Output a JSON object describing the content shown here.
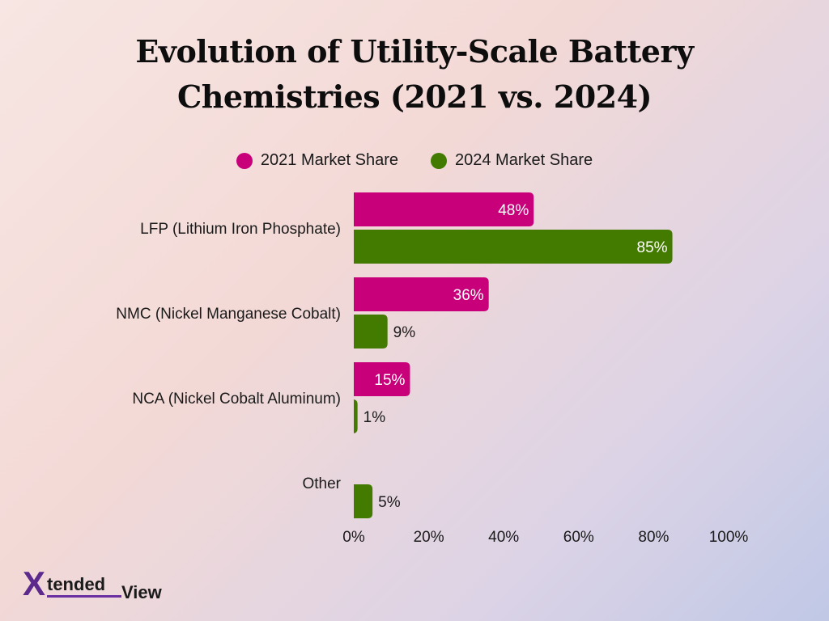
{
  "chart_data": {
    "type": "bar",
    "orientation": "horizontal",
    "title_lines": [
      "Evolution of Utility-Scale Battery",
      "Chemistries (2021 vs. 2024)"
    ],
    "categories": [
      "LFP (Lithium Iron Phosphate)",
      "NMC (Nickel Manganese Cobalt)",
      "NCA (Nickel Cobalt Aluminum)",
      "Other"
    ],
    "series": [
      {
        "name": "2021 Market Share",
        "color": "#c8007a",
        "values": [
          48,
          36,
          15,
          null
        ],
        "labels": [
          "48%",
          "36%",
          "15%",
          null
        ]
      },
      {
        "name": "2024 Market Share",
        "color": "#437a00",
        "values": [
          85,
          9,
          1,
          5
        ],
        "labels": [
          "85%",
          "9%",
          "1%",
          "5%"
        ]
      }
    ],
    "xlim": [
      0,
      100
    ],
    "x_ticks": [
      "0%",
      "20%",
      "40%",
      "60%",
      "80%",
      "100%"
    ],
    "x_tick_values": [
      0,
      20,
      40,
      60,
      80,
      100
    ],
    "grid": false,
    "legend_position": "top-center"
  },
  "logo": {
    "mark": "X",
    "word": "tended",
    "word2": "View",
    "color": "#5b2a8c"
  }
}
